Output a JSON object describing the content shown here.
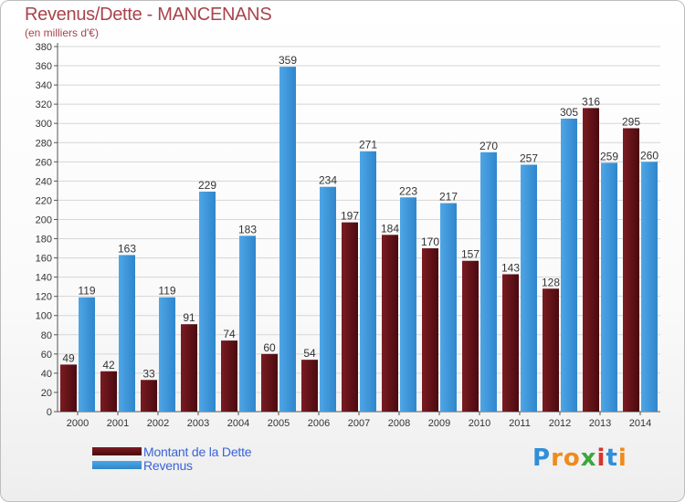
{
  "title": "Revenus/Dette - MANCENANS",
  "subtitle": "(en milliers d'€)",
  "colors": {
    "dette": "#7a1c22",
    "dette_dark": "#4a0a0f",
    "revenus": "#4ea6e6",
    "revenus_dark": "#2f86cc",
    "title": "#a8434b",
    "legend_text": "#3a63d8"
  },
  "legend": {
    "dette_label": "Montant de la Dette",
    "revenus_label": "Revenus"
  },
  "logo": {
    "text": "Proxiti",
    "letters": [
      "P",
      "r",
      "o",
      "x",
      "i",
      "t",
      "i"
    ],
    "letter_colors": [
      "#2f8fd8",
      "#f08a1c",
      "#f08a1c",
      "#3aa83a",
      "#d8342c",
      "#2f8fd8",
      "#f08a1c"
    ]
  },
  "chart_data": {
    "type": "bar",
    "categories": [
      "2000",
      "2001",
      "2002",
      "2003",
      "2004",
      "2005",
      "2006",
      "2007",
      "2008",
      "2009",
      "2010",
      "2011",
      "2012",
      "2013",
      "2014"
    ],
    "series": [
      {
        "name": "Montant de la Dette",
        "values": [
          49,
          42,
          33,
          91,
          74,
          60,
          54,
          197,
          184,
          170,
          157,
          143,
          128,
          316,
          295
        ]
      },
      {
        "name": "Revenus",
        "values": [
          119,
          163,
          119,
          229,
          183,
          359,
          234,
          271,
          223,
          217,
          270,
          257,
          305,
          259,
          260
        ]
      }
    ],
    "title": "Revenus/Dette - MANCENANS",
    "ylabel": "(en milliers d'€)",
    "ylim": [
      0,
      380
    ],
    "yticks": [
      0,
      20,
      40,
      60,
      80,
      100,
      120,
      140,
      160,
      180,
      200,
      220,
      240,
      260,
      280,
      300,
      320,
      340,
      360,
      380
    ],
    "grid": true,
    "legend": "bottom-left"
  }
}
